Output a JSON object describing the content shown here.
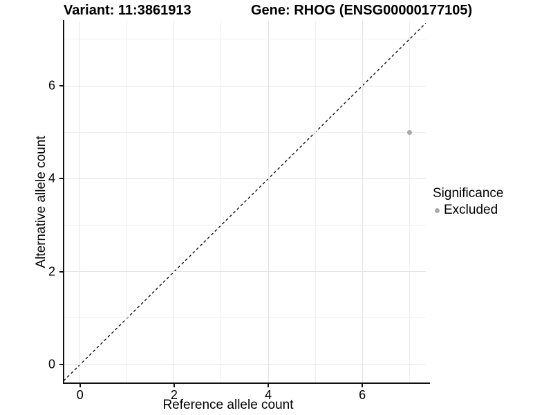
{
  "header": {
    "variant_title": "Variant: 11:3861913",
    "gene_title": "Gene: RHOG (ENSG00000177105)"
  },
  "chart_data": {
    "type": "scatter",
    "xlabel": "Reference allele count",
    "ylabel": "Alternative allele count",
    "xlim": [
      -0.35,
      7.35
    ],
    "ylim": [
      -0.4,
      7.4
    ],
    "x_ticks": [
      0,
      2,
      4,
      6
    ],
    "y_ticks": [
      0,
      2,
      4,
      6
    ],
    "grid_lines_x": [
      0,
      1,
      2,
      3,
      4,
      5,
      6,
      7
    ],
    "grid_lines_y": [
      0,
      1,
      2,
      3,
      4,
      5,
      6,
      7
    ],
    "grid": true,
    "legend_position": "right",
    "series": [
      {
        "name": "Excluded",
        "color": "#aaaaaa",
        "points": [
          {
            "x": 7,
            "y": 5
          }
        ]
      }
    ],
    "reference_line": {
      "type": "identity y=x",
      "style": "dashed",
      "color": "#000000"
    }
  },
  "legend": {
    "title": "Significance",
    "items": [
      {
        "label": "Excluded",
        "color": "#aaaaaa",
        "marker": "dot"
      }
    ]
  },
  "colors": {
    "background": "#ffffff",
    "grid_major": "#e4e4e4",
    "grid_minor": "#efefef",
    "axis_line": "#111111",
    "text": "#000000"
  }
}
